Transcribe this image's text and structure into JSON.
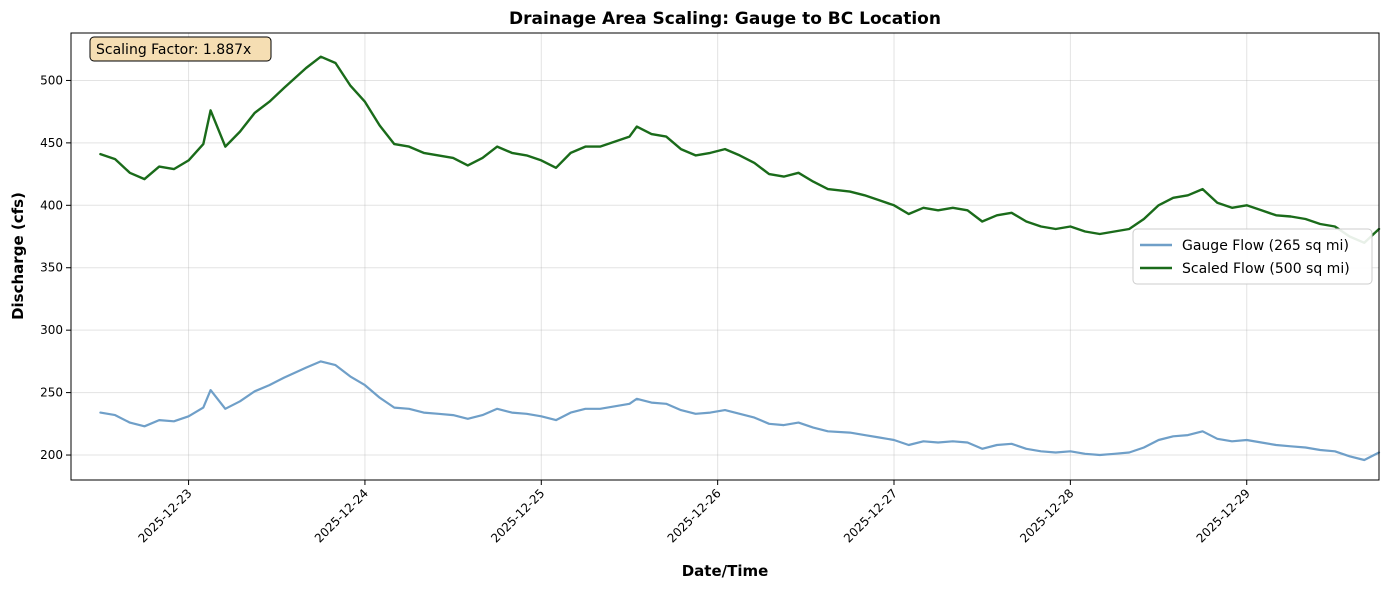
{
  "chart_data": {
    "type": "line",
    "title": "Drainage Area Scaling: Gauge to BC Location",
    "xlabel": "Date/Time",
    "ylabel": "Discharge (cfs)",
    "x_ticks": [
      "2025-12-23",
      "2025-12-24",
      "2025-12-25",
      "2025-12-26",
      "2025-12-27",
      "2025-12-28",
      "2025-12-29"
    ],
    "y_ticks": [
      200,
      250,
      300,
      350,
      400,
      450,
      500
    ],
    "xlim": [
      "2025-12-22T08:00",
      "2025-12-29T18:00"
    ],
    "ylim": [
      180,
      538
    ],
    "grid": true,
    "legend_position": "center-right",
    "annotation": "Scaling Factor: 1.887x",
    "colors": {
      "gauge": "#6f9fc8",
      "scaled": "#1a6b1a",
      "annotation_bg": "#f5deb3"
    },
    "series": [
      {
        "name": "Gauge Flow (265 sq mi)",
        "points": [
          [
            "2025-12-22T12:00",
            234
          ],
          [
            "2025-12-22T14:00",
            232
          ],
          [
            "2025-12-22T16:00",
            226
          ],
          [
            "2025-12-22T18:00",
            223
          ],
          [
            "2025-12-22T20:00",
            228
          ],
          [
            "2025-12-22T22:00",
            227
          ],
          [
            "2025-12-23T00:00",
            231
          ],
          [
            "2025-12-23T02:00",
            238
          ],
          [
            "2025-12-23T03:00",
            252
          ],
          [
            "2025-12-23T05:00",
            237
          ],
          [
            "2025-12-23T07:00",
            243
          ],
          [
            "2025-12-23T09:00",
            251
          ],
          [
            "2025-12-23T11:00",
            256
          ],
          [
            "2025-12-23T13:00",
            262
          ],
          [
            "2025-12-23T16:00",
            270
          ],
          [
            "2025-12-23T18:00",
            275
          ],
          [
            "2025-12-23T20:00",
            272
          ],
          [
            "2025-12-23T22:00",
            263
          ],
          [
            "2025-12-24T00:00",
            256
          ],
          [
            "2025-12-24T02:00",
            246
          ],
          [
            "2025-12-24T04:00",
            238
          ],
          [
            "2025-12-24T06:00",
            237
          ],
          [
            "2025-12-24T08:00",
            234
          ],
          [
            "2025-12-24T10:00",
            233
          ],
          [
            "2025-12-24T12:00",
            232
          ],
          [
            "2025-12-24T14:00",
            229
          ],
          [
            "2025-12-24T16:00",
            232
          ],
          [
            "2025-12-24T18:00",
            237
          ],
          [
            "2025-12-24T20:00",
            234
          ],
          [
            "2025-12-24T22:00",
            233
          ],
          [
            "2025-12-25T00:00",
            231
          ],
          [
            "2025-12-25T02:00",
            228
          ],
          [
            "2025-12-25T04:00",
            234
          ],
          [
            "2025-12-25T06:00",
            237
          ],
          [
            "2025-12-25T08:00",
            237
          ],
          [
            "2025-12-25T10:00",
            239
          ],
          [
            "2025-12-25T12:00",
            241
          ],
          [
            "2025-12-25T13:00",
            245
          ],
          [
            "2025-12-25T15:00",
            242
          ],
          [
            "2025-12-25T17:00",
            241
          ],
          [
            "2025-12-25T19:00",
            236
          ],
          [
            "2025-12-25T21:00",
            233
          ],
          [
            "2025-12-25T23:00",
            234
          ],
          [
            "2025-12-26T01:00",
            236
          ],
          [
            "2025-12-26T03:00",
            233
          ],
          [
            "2025-12-26T05:00",
            230
          ],
          [
            "2025-12-26T07:00",
            225
          ],
          [
            "2025-12-26T09:00",
            224
          ],
          [
            "2025-12-26T11:00",
            226
          ],
          [
            "2025-12-26T13:00",
            222
          ],
          [
            "2025-12-26T15:00",
            219
          ],
          [
            "2025-12-26T18:00",
            218
          ],
          [
            "2025-12-26T20:00",
            216
          ],
          [
            "2025-12-26T22:00",
            214
          ],
          [
            "2025-12-27T00:00",
            212
          ],
          [
            "2025-12-27T02:00",
            208
          ],
          [
            "2025-12-27T04:00",
            211
          ],
          [
            "2025-12-27T06:00",
            210
          ],
          [
            "2025-12-27T08:00",
            211
          ],
          [
            "2025-12-27T10:00",
            210
          ],
          [
            "2025-12-27T12:00",
            205
          ],
          [
            "2025-12-27T14:00",
            208
          ],
          [
            "2025-12-27T16:00",
            209
          ],
          [
            "2025-12-27T18:00",
            205
          ],
          [
            "2025-12-27T20:00",
            203
          ],
          [
            "2025-12-27T22:00",
            202
          ],
          [
            "2025-12-28T00:00",
            203
          ],
          [
            "2025-12-28T02:00",
            201
          ],
          [
            "2025-12-28T04:00",
            200
          ],
          [
            "2025-12-28T06:00",
            201
          ],
          [
            "2025-12-28T08:00",
            202
          ],
          [
            "2025-12-28T10:00",
            206
          ],
          [
            "2025-12-28T12:00",
            212
          ],
          [
            "2025-12-28T14:00",
            215
          ],
          [
            "2025-12-28T16:00",
            216
          ],
          [
            "2025-12-28T18:00",
            219
          ],
          [
            "2025-12-28T20:00",
            213
          ],
          [
            "2025-12-28T22:00",
            211
          ],
          [
            "2025-12-29T00:00",
            212
          ],
          [
            "2025-12-29T02:00",
            210
          ],
          [
            "2025-12-29T04:00",
            208
          ],
          [
            "2025-12-29T06:00",
            207
          ],
          [
            "2025-12-29T08:00",
            206
          ],
          [
            "2025-12-29T10:00",
            204
          ],
          [
            "2025-12-29T12:00",
            203
          ],
          [
            "2025-12-29T14:00",
            199
          ],
          [
            "2025-12-29T16:00",
            196
          ],
          [
            "2025-12-29T18:00",
            202
          ]
        ]
      },
      {
        "name": "Scaled Flow (500 sq mi)",
        "points": [
          [
            "2025-12-22T12:00",
            441
          ],
          [
            "2025-12-22T14:00",
            437
          ],
          [
            "2025-12-22T16:00",
            426
          ],
          [
            "2025-12-22T18:00",
            421
          ],
          [
            "2025-12-22T20:00",
            431
          ],
          [
            "2025-12-22T22:00",
            429
          ],
          [
            "2025-12-23T00:00",
            436
          ],
          [
            "2025-12-23T02:00",
            449
          ],
          [
            "2025-12-23T03:00",
            476
          ],
          [
            "2025-12-23T05:00",
            447
          ],
          [
            "2025-12-23T07:00",
            459
          ],
          [
            "2025-12-23T09:00",
            474
          ],
          [
            "2025-12-23T11:00",
            483
          ],
          [
            "2025-12-23T13:00",
            494
          ],
          [
            "2025-12-23T16:00",
            510
          ],
          [
            "2025-12-23T18:00",
            519
          ],
          [
            "2025-12-23T20:00",
            514
          ],
          [
            "2025-12-23T22:00",
            496
          ],
          [
            "2025-12-24T00:00",
            483
          ],
          [
            "2025-12-24T02:00",
            464
          ],
          [
            "2025-12-24T04:00",
            449
          ],
          [
            "2025-12-24T06:00",
            447
          ],
          [
            "2025-12-24T08:00",
            442
          ],
          [
            "2025-12-24T10:00",
            440
          ],
          [
            "2025-12-24T12:00",
            438
          ],
          [
            "2025-12-24T14:00",
            432
          ],
          [
            "2025-12-24T16:00",
            438
          ],
          [
            "2025-12-24T18:00",
            447
          ],
          [
            "2025-12-24T20:00",
            442
          ],
          [
            "2025-12-24T22:00",
            440
          ],
          [
            "2025-12-25T00:00",
            436
          ],
          [
            "2025-12-25T02:00",
            430
          ],
          [
            "2025-12-25T04:00",
            442
          ],
          [
            "2025-12-25T06:00",
            447
          ],
          [
            "2025-12-25T08:00",
            447
          ],
          [
            "2025-12-25T10:00",
            451
          ],
          [
            "2025-12-25T12:00",
            455
          ],
          [
            "2025-12-25T13:00",
            463
          ],
          [
            "2025-12-25T15:00",
            457
          ],
          [
            "2025-12-25T17:00",
            455
          ],
          [
            "2025-12-25T19:00",
            445
          ],
          [
            "2025-12-25T21:00",
            440
          ],
          [
            "2025-12-25T23:00",
            442
          ],
          [
            "2025-12-26T01:00",
            445
          ],
          [
            "2025-12-26T03:00",
            440
          ],
          [
            "2025-12-26T05:00",
            434
          ],
          [
            "2025-12-26T07:00",
            425
          ],
          [
            "2025-12-26T09:00",
            423
          ],
          [
            "2025-12-26T11:00",
            426
          ],
          [
            "2025-12-26T13:00",
            419
          ],
          [
            "2025-12-26T15:00",
            413
          ],
          [
            "2025-12-26T18:00",
            411
          ],
          [
            "2025-12-26T20:00",
            408
          ],
          [
            "2025-12-26T22:00",
            404
          ],
          [
            "2025-12-27T00:00",
            400
          ],
          [
            "2025-12-27T02:00",
            393
          ],
          [
            "2025-12-27T04:00",
            398
          ],
          [
            "2025-12-27T06:00",
            396
          ],
          [
            "2025-12-27T08:00",
            398
          ],
          [
            "2025-12-27T10:00",
            396
          ],
          [
            "2025-12-27T12:00",
            387
          ],
          [
            "2025-12-27T14:00",
            392
          ],
          [
            "2025-12-27T16:00",
            394
          ],
          [
            "2025-12-27T18:00",
            387
          ],
          [
            "2025-12-27T20:00",
            383
          ],
          [
            "2025-12-27T22:00",
            381
          ],
          [
            "2025-12-28T00:00",
            383
          ],
          [
            "2025-12-28T02:00",
            379
          ],
          [
            "2025-12-28T04:00",
            377
          ],
          [
            "2025-12-28T06:00",
            379
          ],
          [
            "2025-12-28T08:00",
            381
          ],
          [
            "2025-12-28T10:00",
            389
          ],
          [
            "2025-12-28T12:00",
            400
          ],
          [
            "2025-12-28T14:00",
            406
          ],
          [
            "2025-12-28T16:00",
            408
          ],
          [
            "2025-12-28T18:00",
            413
          ],
          [
            "2025-12-28T20:00",
            402
          ],
          [
            "2025-12-28T22:00",
            398
          ],
          [
            "2025-12-29T00:00",
            400
          ],
          [
            "2025-12-29T02:00",
            396
          ],
          [
            "2025-12-29T04:00",
            392
          ],
          [
            "2025-12-29T06:00",
            391
          ],
          [
            "2025-12-29T08:00",
            389
          ],
          [
            "2025-12-29T10:00",
            385
          ],
          [
            "2025-12-29T12:00",
            383
          ],
          [
            "2025-12-29T14:00",
            375
          ],
          [
            "2025-12-29T16:00",
            370
          ],
          [
            "2025-12-29T18:00",
            381
          ]
        ]
      }
    ]
  }
}
